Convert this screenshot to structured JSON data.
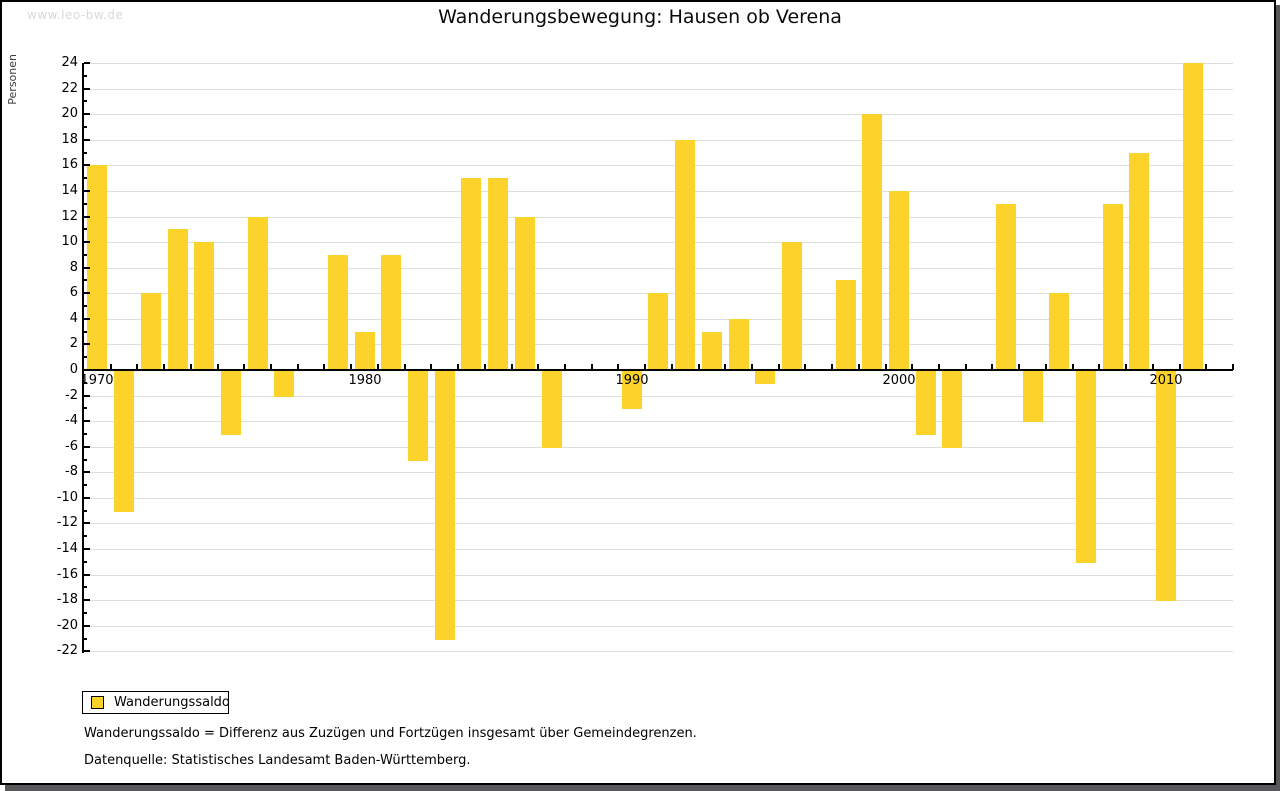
{
  "watermark": "www.leo-bw.de",
  "chart_data": {
    "type": "bar",
    "title": "Wanderungsbewegung: Hausen ob Verena",
    "ylabel": "Personen",
    "xlabel": "",
    "ylim": [
      -22,
      24
    ],
    "ytick_step": 2,
    "grid": true,
    "legend_position": "bottom-left",
    "x_decade_ticks": [
      1970,
      1980,
      1990,
      2000,
      2010
    ],
    "categories": [
      1970,
      1971,
      1972,
      1973,
      1974,
      1975,
      1976,
      1977,
      1978,
      1979,
      1980,
      1981,
      1982,
      1983,
      1984,
      1985,
      1986,
      1987,
      1988,
      1989,
      1990,
      1991,
      1992,
      1993,
      1994,
      1995,
      1996,
      1997,
      1998,
      1999,
      2000,
      2001,
      2002,
      2003,
      2004,
      2005,
      2006,
      2007,
      2008,
      2009,
      2010,
      2011
    ],
    "series": [
      {
        "name": "Wanderungssaldo",
        "color": "#fcd32b",
        "values": [
          16,
          -11,
          6,
          11,
          10,
          -5,
          12,
          -2,
          0,
          9,
          3,
          9,
          -7,
          -21,
          15,
          15,
          12,
          -6,
          0,
          0,
          -3,
          6,
          18,
          3,
          4,
          -1,
          10,
          0,
          7,
          20,
          14,
          -5,
          -6,
          0,
          13,
          -4,
          6,
          -15,
          13,
          17,
          -18,
          24
        ]
      }
    ]
  },
  "legend": {
    "label": "Wanderungssaldo",
    "swatch_color": "#fcd32b"
  },
  "footnotes": {
    "definition": "Wanderungssaldo = Differenz aus Zuzügen und Fortzügen insgesamt über Gemeindegrenzen.",
    "source": "Datenquelle: Statistisches Landesamt Baden-Württemberg."
  }
}
